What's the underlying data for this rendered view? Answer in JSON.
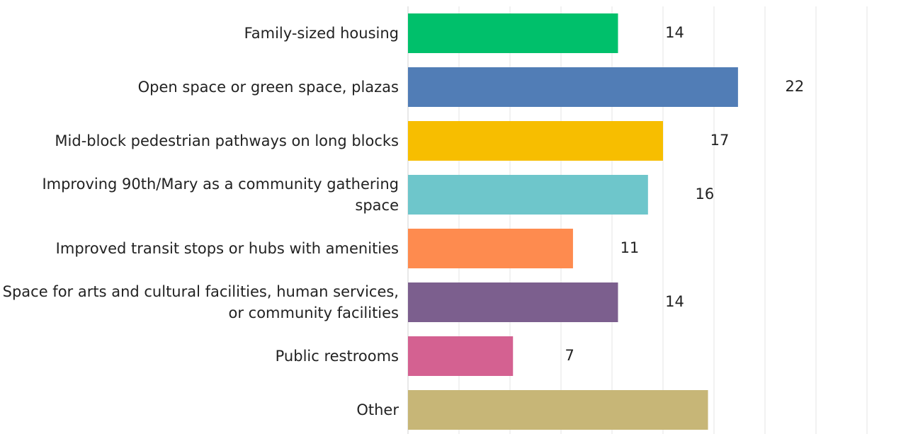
{
  "chart_data": {
    "type": "hbar",
    "categories": [
      "Family-sized housing",
      "Open space or green space, plazas",
      "Mid-block pedestrian pathways on long blocks",
      "Improving 90th/Mary as a community gathering space",
      "Improved transit stops or hubs with amenities",
      "Space for arts and cultural facilities, human services, or community facilities",
      "Public restrooms",
      "Other"
    ],
    "values": [
      14,
      22,
      17,
      16,
      11,
      14,
      7,
      20
    ],
    "value_labels": [
      "14",
      "22",
      "17",
      "16",
      "11",
      "14",
      "7",
      null
    ],
    "colors": [
      "#00c06b",
      "#517db6",
      "#f7be00",
      "#6ec6cb",
      "#fe8b4f",
      "#7c5f8e",
      "#d46191",
      "#c7b677"
    ],
    "xlim": [
      0,
      34
    ],
    "xticks": [
      0,
      3.4,
      6.8,
      10.2,
      13.6,
      17,
      20.4,
      23.8,
      27.2,
      30.6
    ],
    "grid": true
  }
}
